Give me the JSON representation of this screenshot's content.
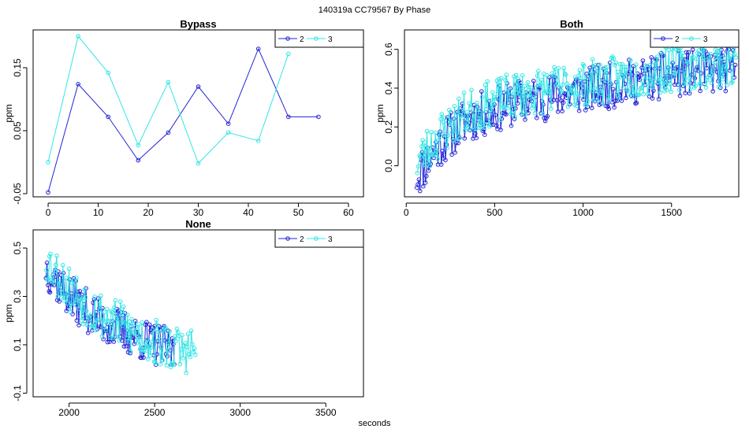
{
  "figure": {
    "suptitle": "140319a    CC79567   By Phase",
    "xlabel": "seconds"
  },
  "colors": {
    "series2": "#2323d8",
    "series3": "#33e5e5",
    "axis": "#000000"
  },
  "chart_data": [
    {
      "id": "bypass",
      "type": "line",
      "title": "Bypass",
      "xlabel": "",
      "ylabel": "ppm",
      "xlim": [
        -3,
        63
      ],
      "ylim": [
        -0.055,
        0.21
      ],
      "xticks": [
        0,
        10,
        20,
        30,
        40,
        50,
        60
      ],
      "xtick_labels": [
        "0",
        "10",
        "20",
        "30",
        "40",
        "50",
        "60"
      ],
      "yticks": [
        -0.05,
        0.05,
        0.15
      ],
      "ytick_labels": [
        "-0.05",
        "0.05",
        "0.15"
      ],
      "legend": {
        "entries": [
          "2",
          "3"
        ],
        "placement": "top-right"
      },
      "series": [
        {
          "name": "2",
          "color": "series2",
          "x": [
            0,
            6,
            12,
            18,
            24,
            30,
            36,
            42,
            48,
            54
          ],
          "y": [
            -0.048,
            0.124,
            0.072,
            0.003,
            0.047,
            0.12,
            0.061,
            0.18,
            0.072,
            0.072
          ]
        },
        {
          "name": "3",
          "color": "series3",
          "x": [
            0,
            6,
            12,
            18,
            24,
            30,
            36,
            42,
            48
          ],
          "y": [
            0.0,
            0.2,
            0.142,
            0.027,
            0.127,
            -0.002,
            0.047,
            0.034,
            0.172
          ]
        }
      ]
    },
    {
      "id": "both",
      "type": "line",
      "title": "Both",
      "xlabel": "",
      "ylabel": "ppm",
      "xlim": [
        -10,
        1880
      ],
      "ylim": [
        -0.16,
        0.7
      ],
      "xticks": [
        0,
        500,
        1000,
        1500
      ],
      "xtick_labels": [
        "0",
        "500",
        "1000",
        "1500"
      ],
      "yticks": [
        0.0,
        0.2,
        0.4,
        0.6
      ],
      "ytick_labels": [
        "0.0",
        "0.2",
        "0.4",
        "0.6"
      ],
      "legend": {
        "entries": [
          "2",
          "3"
        ],
        "placement": "top-right"
      },
      "series": [
        {
          "name": "2",
          "color": "series2",
          "generator": {
            "x_start": 60,
            "x_end": 1860,
            "step": 6,
            "base": [
              [
                60,
                -0.05
              ],
              [
                200,
                0.12
              ],
              [
                350,
                0.24
              ],
              [
                600,
                0.32
              ],
              [
                900,
                0.37
              ],
              [
                1200,
                0.42
              ],
              [
                1500,
                0.47
              ],
              [
                1860,
                0.5
              ]
            ],
            "amp": 0.12,
            "seed": 11
          }
        },
        {
          "name": "3",
          "color": "series3",
          "generator": {
            "x_start": 63,
            "x_end": 1863,
            "step": 6,
            "base": [
              [
                60,
                0.02
              ],
              [
                200,
                0.17
              ],
              [
                350,
                0.28
              ],
              [
                600,
                0.36
              ],
              [
                900,
                0.41
              ],
              [
                1200,
                0.45
              ],
              [
                1500,
                0.5
              ],
              [
                1860,
                0.53
              ]
            ],
            "amp": 0.12,
            "seed": 23
          }
        }
      ]
    },
    {
      "id": "none",
      "type": "line",
      "title": "None",
      "xlabel": "",
      "ylabel": "ppm",
      "xlim": [
        1790,
        3720
      ],
      "ylim": [
        -0.115,
        0.575
      ],
      "xticks": [
        2000,
        2500,
        3000,
        3500
      ],
      "xtick_labels": [
        "2000",
        "2500",
        "3000",
        "3500"
      ],
      "yticks": [
        -0.1,
        0.1,
        0.3,
        0.5
      ],
      "ytick_labels": [
        "-0.1",
        "0.1",
        "0.3",
        "0.5"
      ],
      "legend": {
        "entries": [
          "2",
          "3"
        ],
        "placement": "top-right"
      },
      "series": [
        {
          "name": "2",
          "color": "series2",
          "generator": {
            "x_start": 1865,
            "x_end": 2620,
            "step": 6,
            "base": [
              [
                1865,
                0.42
              ],
              [
                2000,
                0.3
              ],
              [
                2200,
                0.19
              ],
              [
                2400,
                0.13
              ],
              [
                2620,
                0.07
              ]
            ],
            "amp": 0.09,
            "seed": 37
          }
        },
        {
          "name": "3",
          "color": "series3",
          "generator": {
            "x_start": 1868,
            "x_end": 2740,
            "step": 6,
            "base": [
              [
                1865,
                0.46
              ],
              [
                2000,
                0.33
              ],
              [
                2200,
                0.22
              ],
              [
                2400,
                0.14
              ],
              [
                2620,
                0.08
              ],
              [
                2740,
                0.08
              ]
            ],
            "amp": 0.1,
            "seed": 53
          }
        }
      ]
    }
  ]
}
